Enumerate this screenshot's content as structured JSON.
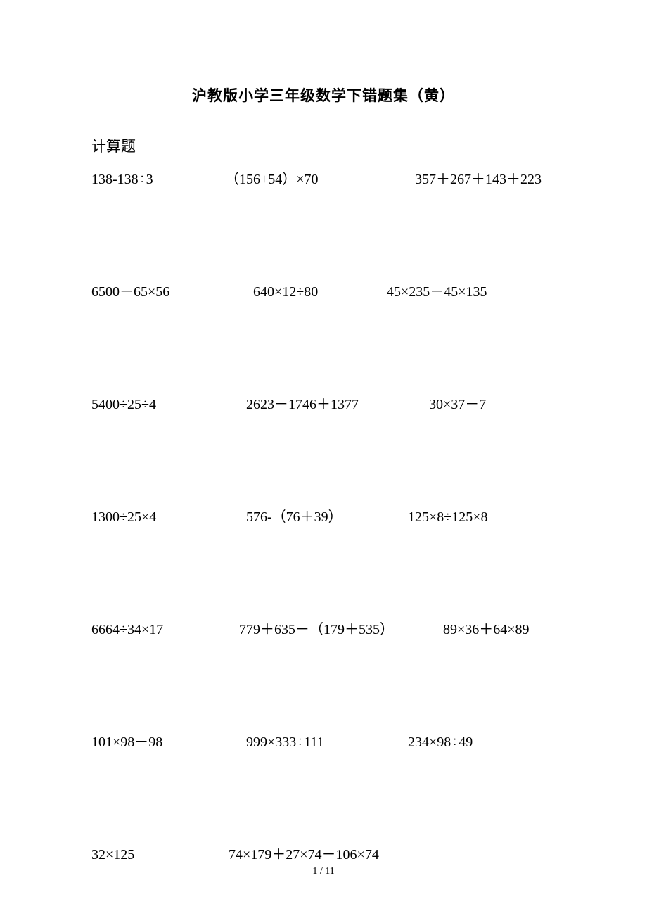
{
  "title": "沪教版小学三年级数学下错题集（黄）",
  "section_heading": "计算题",
  "rows": [
    {
      "c1": "138-138÷3",
      "c2": "（156+54）×70",
      "c3": "357＋267＋143＋223",
      "w1": "190px",
      "w2": "240px",
      "w3": "auto",
      "ml2": "0px",
      "ml3": "30px"
    },
    {
      "c1": "6500－65×56",
      "c2": "640×12÷80",
      "c3": "45×235－45×135",
      "w1": "230px",
      "w2": "190px",
      "w3": "auto",
      "ml2": "0px",
      "ml3": "0px"
    },
    {
      "c1": "5400÷25÷4",
      "c2": "2623－1746＋1377",
      "c3": "30×37－7",
      "w1": "220px",
      "w2": "260px",
      "w3": "auto",
      "ml2": "0px",
      "ml3": "0px"
    },
    {
      "c1": "1300÷25×4",
      "c2": "576-（76＋39）",
      "c3": "125×8÷125×8",
      "w1": "220px",
      "w2": "230px",
      "w3": "auto",
      "ml2": "0px",
      "ml3": "0px"
    },
    {
      "c1": "6664÷34×17",
      "c2": "779＋635－（179＋535）",
      "c3": "89×36＋64×89",
      "w1": "210px",
      "w2": "290px",
      "w3": "auto",
      "ml2": "0px",
      "ml3": "0px"
    },
    {
      "c1": "101×98－98",
      "c2": "999×333÷111",
      "c3": "234×98÷49",
      "w1": "220px",
      "w2": "230px",
      "w3": "auto",
      "ml2": "0px",
      "ml3": "0px"
    },
    {
      "c1": "32×125",
      "c2": "74×179＋27×74－106×74",
      "c3": "",
      "w1": "195px",
      "w2": "auto",
      "w3": "auto",
      "ml2": "0px",
      "ml3": "0px"
    }
  ],
  "page_number": "1 / 11",
  "colors": {
    "background": "#ffffff",
    "text": "#000000"
  },
  "typography": {
    "title_fontsize": 21,
    "body_fontsize": 20,
    "pagenum_fontsize": 14,
    "font_family": "SimSun"
  }
}
